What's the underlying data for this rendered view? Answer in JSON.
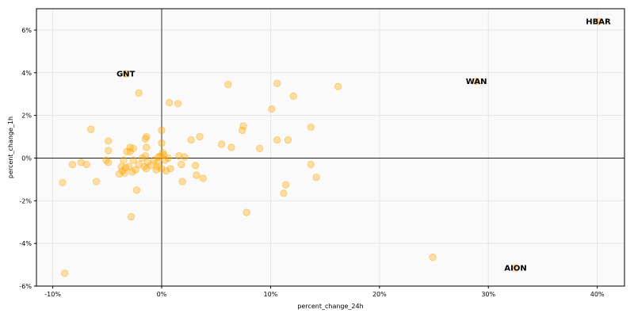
{
  "chart_data": {
    "type": "scatter",
    "title": "",
    "xlabel": "percent_change_24h",
    "ylabel": "percent_change_1h",
    "xlim": [
      -11.5,
      42.5
    ],
    "ylim": [
      -6,
      7
    ],
    "x_ticks": [
      {
        "value": -10,
        "label": "-10%"
      },
      {
        "value": 0,
        "label": "0%"
      },
      {
        "value": 10,
        "label": "10%"
      },
      {
        "value": 20,
        "label": "20%"
      },
      {
        "value": 30,
        "label": "30%"
      },
      {
        "value": 40,
        "label": "40%"
      }
    ],
    "y_ticks": [
      {
        "value": -6,
        "label": "-6%"
      },
      {
        "value": -4,
        "label": "-4%"
      },
      {
        "value": -2,
        "label": "-2%"
      },
      {
        "value": 0,
        "label": "0%"
      },
      {
        "value": 2,
        "label": "2%"
      },
      {
        "value": 4,
        "label": "4%"
      },
      {
        "value": 6,
        "label": "6%"
      }
    ],
    "grid": true,
    "reference_lines": {
      "x": 0,
      "y": 0
    },
    "point_color": "#ffa500",
    "background_color": "#fafafa",
    "points": [
      [
        -9.1,
        -1.15
      ],
      [
        -8.9,
        -5.4
      ],
      [
        -8.2,
        -0.3
      ],
      [
        -7.4,
        -0.2
      ],
      [
        -6.9,
        -0.3
      ],
      [
        -6.5,
        1.35
      ],
      [
        -6.0,
        -1.1
      ],
      [
        -5.1,
        -0.1
      ],
      [
        -4.9,
        -0.2
      ],
      [
        -4.9,
        0.35
      ],
      [
        -4.9,
        0.8
      ],
      [
        -3.9,
        -0.75
      ],
      [
        -3.7,
        -0.4
      ],
      [
        -3.6,
        -0.6
      ],
      [
        -3.5,
        -0.1
      ],
      [
        -3.4,
        -0.7
      ],
      [
        -3.3,
        -0.45
      ],
      [
        -3.2,
        0.3
      ],
      [
        -3.0,
        -0.4
      ],
      [
        -2.9,
        0.5
      ],
      [
        -2.9,
        0.3
      ],
      [
        -2.7,
        -0.65
      ],
      [
        -2.6,
        0.45
      ],
      [
        -2.6,
        -0.1
      ],
      [
        -2.4,
        -0.55
      ],
      [
        -2.3,
        -1.5
      ],
      [
        -2.1,
        -0.3
      ],
      [
        -1.8,
        0.0
      ],
      [
        -1.6,
        -0.4
      ],
      [
        -1.5,
        0.1
      ],
      [
        -1.5,
        0.9
      ],
      [
        -1.4,
        -0.5
      ],
      [
        -1.4,
        0.5
      ],
      [
        -1.3,
        -0.2
      ],
      [
        -1.0,
        -0.35
      ],
      [
        -0.7,
        -0.1
      ],
      [
        -0.5,
        -0.55
      ],
      [
        -0.4,
        -0.2
      ],
      [
        -0.3,
        0.05
      ],
      [
        -0.1,
        0.1
      ],
      [
        0.0,
        -0.5
      ],
      [
        0.0,
        0.7
      ],
      [
        0.0,
        1.3
      ],
      [
        0.1,
        0.25
      ],
      [
        0.2,
        0.15
      ],
      [
        0.3,
        -0.1
      ],
      [
        0.4,
        -0.6
      ],
      [
        0.6,
        0.0
      ],
      [
        0.8,
        -0.5
      ],
      [
        0.7,
        2.6
      ],
      [
        1.5,
        2.55
      ],
      [
        1.6,
        0.1
      ],
      [
        1.8,
        -0.3
      ],
      [
        1.9,
        -1.1
      ],
      [
        2.1,
        0.05
      ],
      [
        2.7,
        0.85
      ],
      [
        3.1,
        -0.35
      ],
      [
        3.2,
        -0.8
      ],
      [
        3.5,
        1.0
      ],
      [
        3.8,
        -0.95
      ],
      [
        6.1,
        3.45
      ],
      [
        5.5,
        0.65
      ],
      [
        6.4,
        0.5
      ],
      [
        7.5,
        1.5
      ],
      [
        7.4,
        1.3
      ],
      [
        7.8,
        -2.55
      ],
      [
        9.0,
        0.45
      ],
      [
        10.1,
        2.3
      ],
      [
        10.6,
        3.5
      ],
      [
        10.6,
        0.85
      ],
      [
        11.2,
        -1.65
      ],
      [
        11.4,
        -1.25
      ],
      [
        11.6,
        0.85
      ],
      [
        12.1,
        2.9
      ],
      [
        13.7,
        1.45
      ],
      [
        13.7,
        -0.3
      ],
      [
        14.2,
        -0.9
      ],
      [
        16.2,
        3.35
      ],
      [
        24.9,
        -4.65
      ],
      [
        -2.8,
        -2.75
      ],
      [
        -2.1,
        3.05
      ],
      [
        -1.4,
        1.0
      ],
      [
        -0.4,
        -0.4
      ],
      [
        -3.3,
        3.95
      ],
      [
        28.9,
        3.6
      ],
      [
        32.5,
        -5.15
      ],
      [
        40.1,
        6.4
      ]
    ],
    "annotations": [
      {
        "label": "GNT",
        "x": -3.3,
        "y": 3.95
      },
      {
        "label": "WAN",
        "x": 28.9,
        "y": 3.6
      },
      {
        "label": "AION",
        "x": 32.5,
        "y": -5.15
      },
      {
        "label": "HBAR",
        "x": 40.1,
        "y": 6.4
      }
    ]
  }
}
